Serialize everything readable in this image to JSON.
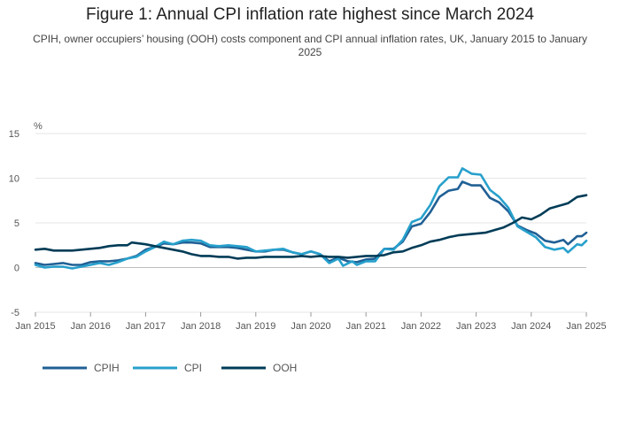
{
  "chart_data": {
    "type": "line",
    "title": "Figure 1: Annual CPI inflation rate highest since March 2024",
    "subtitle": "CPIH, owner occupiers’ housing (OOH) costs component and CPI annual inflation rates, UK, January 2015 to January 2025",
    "ylabel": "%",
    "ylim": [
      -5,
      15
    ],
    "yticks": [
      -5,
      0,
      5,
      10,
      15
    ],
    "xlim": [
      "2015-01",
      "2025-01"
    ],
    "xticks": [
      "Jan 2015",
      "Jan 2016",
      "Jan 2017",
      "Jan 2018",
      "Jan 2019",
      "Jan 2020",
      "Jan 2021",
      "Jan 2022",
      "Jan 2023",
      "Jan 2024",
      "Jan 2025"
    ],
    "grid": true,
    "legend_position": "bottom-left",
    "series": [
      {
        "name": "CPIH",
        "color": "#206095",
        "points": [
          [
            "2015-01",
            0.5
          ],
          [
            "2015-03",
            0.3
          ],
          [
            "2015-05",
            0.4
          ],
          [
            "2015-07",
            0.5
          ],
          [
            "2015-09",
            0.3
          ],
          [
            "2015-11",
            0.3
          ],
          [
            "2016-01",
            0.6
          ],
          [
            "2016-03",
            0.7
          ],
          [
            "2016-05",
            0.7
          ],
          [
            "2016-07",
            0.8
          ],
          [
            "2016-09",
            1.0
          ],
          [
            "2016-11",
            1.3
          ],
          [
            "2017-01",
            2.0
          ],
          [
            "2017-03",
            2.3
          ],
          [
            "2017-05",
            2.7
          ],
          [
            "2017-07",
            2.6
          ],
          [
            "2017-09",
            2.8
          ],
          [
            "2017-11",
            2.8
          ],
          [
            "2018-01",
            2.7
          ],
          [
            "2018-03",
            2.3
          ],
          [
            "2018-05",
            2.3
          ],
          [
            "2018-07",
            2.3
          ],
          [
            "2018-09",
            2.2
          ],
          [
            "2018-11",
            2.0
          ],
          [
            "2019-01",
            1.8
          ],
          [
            "2019-03",
            1.8
          ],
          [
            "2019-05",
            2.0
          ],
          [
            "2019-07",
            2.0
          ],
          [
            "2019-09",
            1.7
          ],
          [
            "2019-11",
            1.5
          ],
          [
            "2020-01",
            1.8
          ],
          [
            "2020-03",
            1.5
          ],
          [
            "2020-05",
            0.7
          ],
          [
            "2020-07",
            1.1
          ],
          [
            "2020-09",
            0.7
          ],
          [
            "2020-11",
            0.6
          ],
          [
            "2021-01",
            0.9
          ],
          [
            "2021-03",
            1.0
          ],
          [
            "2021-05",
            2.1
          ],
          [
            "2021-07",
            2.1
          ],
          [
            "2021-09",
            2.9
          ],
          [
            "2021-11",
            4.6
          ],
          [
            "2022-01",
            4.9
          ],
          [
            "2022-03",
            6.2
          ],
          [
            "2022-05",
            7.9
          ],
          [
            "2022-07",
            8.6
          ],
          [
            "2022-09",
            8.8
          ],
          [
            "2022-10",
            9.6
          ],
          [
            "2022-12",
            9.2
          ],
          [
            "2023-02",
            9.2
          ],
          [
            "2023-04",
            7.8
          ],
          [
            "2023-06",
            7.3
          ],
          [
            "2023-08",
            6.3
          ],
          [
            "2023-10",
            4.7
          ],
          [
            "2023-12",
            4.2
          ],
          [
            "2024-02",
            3.8
          ],
          [
            "2024-04",
            3.0
          ],
          [
            "2024-06",
            2.8
          ],
          [
            "2024-08",
            3.1
          ],
          [
            "2024-09",
            2.6
          ],
          [
            "2024-11",
            3.5
          ],
          [
            "2024-12",
            3.5
          ],
          [
            "2025-01",
            3.9
          ]
        ]
      },
      {
        "name": "CPI",
        "color": "#27a0cc",
        "points": [
          [
            "2015-01",
            0.3
          ],
          [
            "2015-03",
            0.0
          ],
          [
            "2015-05",
            0.1
          ],
          [
            "2015-07",
            0.1
          ],
          [
            "2015-09",
            -0.1
          ],
          [
            "2015-11",
            0.1
          ],
          [
            "2016-01",
            0.3
          ],
          [
            "2016-03",
            0.5
          ],
          [
            "2016-05",
            0.3
          ],
          [
            "2016-07",
            0.6
          ],
          [
            "2016-09",
            1.0
          ],
          [
            "2016-11",
            1.2
          ],
          [
            "2017-01",
            1.8
          ],
          [
            "2017-03",
            2.3
          ],
          [
            "2017-05",
            2.9
          ],
          [
            "2017-07",
            2.6
          ],
          [
            "2017-09",
            3.0
          ],
          [
            "2017-11",
            3.1
          ],
          [
            "2018-01",
            3.0
          ],
          [
            "2018-03",
            2.5
          ],
          [
            "2018-05",
            2.4
          ],
          [
            "2018-07",
            2.5
          ],
          [
            "2018-09",
            2.4
          ],
          [
            "2018-11",
            2.3
          ],
          [
            "2019-01",
            1.8
          ],
          [
            "2019-03",
            1.9
          ],
          [
            "2019-05",
            2.0
          ],
          [
            "2019-07",
            2.1
          ],
          [
            "2019-09",
            1.7
          ],
          [
            "2019-11",
            1.5
          ],
          [
            "2020-01",
            1.8
          ],
          [
            "2020-03",
            1.5
          ],
          [
            "2020-05",
            0.5
          ],
          [
            "2020-07",
            1.0
          ],
          [
            "2020-08",
            0.2
          ],
          [
            "2020-10",
            0.7
          ],
          [
            "2020-11",
            0.3
          ],
          [
            "2021-01",
            0.7
          ],
          [
            "2021-03",
            0.7
          ],
          [
            "2021-05",
            2.1
          ],
          [
            "2021-07",
            2.0
          ],
          [
            "2021-09",
            3.1
          ],
          [
            "2021-11",
            5.1
          ],
          [
            "2022-01",
            5.5
          ],
          [
            "2022-03",
            7.0
          ],
          [
            "2022-05",
            9.1
          ],
          [
            "2022-07",
            10.1
          ],
          [
            "2022-09",
            10.1
          ],
          [
            "2022-10",
            11.1
          ],
          [
            "2022-12",
            10.5
          ],
          [
            "2023-02",
            10.4
          ],
          [
            "2023-04",
            8.7
          ],
          [
            "2023-06",
            7.9
          ],
          [
            "2023-08",
            6.7
          ],
          [
            "2023-10",
            4.6
          ],
          [
            "2023-12",
            4.0
          ],
          [
            "2024-02",
            3.4
          ],
          [
            "2024-04",
            2.3
          ],
          [
            "2024-06",
            2.0
          ],
          [
            "2024-08",
            2.2
          ],
          [
            "2024-09",
            1.7
          ],
          [
            "2024-11",
            2.6
          ],
          [
            "2024-12",
            2.5
          ],
          [
            "2025-01",
            3.0
          ]
        ]
      },
      {
        "name": "OOH",
        "color": "#003c57",
        "points": [
          [
            "2015-01",
            2.0
          ],
          [
            "2015-03",
            2.1
          ],
          [
            "2015-05",
            1.9
          ],
          [
            "2015-07",
            1.9
          ],
          [
            "2015-09",
            1.9
          ],
          [
            "2015-11",
            2.0
          ],
          [
            "2016-01",
            2.1
          ],
          [
            "2016-03",
            2.2
          ],
          [
            "2016-05",
            2.4
          ],
          [
            "2016-07",
            2.5
          ],
          [
            "2016-09",
            2.5
          ],
          [
            "2016-10",
            2.8
          ],
          [
            "2017-01",
            2.6
          ],
          [
            "2017-03",
            2.4
          ],
          [
            "2017-05",
            2.2
          ],
          [
            "2017-07",
            2.0
          ],
          [
            "2017-09",
            1.8
          ],
          [
            "2017-11",
            1.5
          ],
          [
            "2018-01",
            1.3
          ],
          [
            "2018-03",
            1.3
          ],
          [
            "2018-05",
            1.2
          ],
          [
            "2018-07",
            1.2
          ],
          [
            "2018-09",
            1.0
          ],
          [
            "2018-11",
            1.1
          ],
          [
            "2019-01",
            1.1
          ],
          [
            "2019-03",
            1.2
          ],
          [
            "2019-05",
            1.2
          ],
          [
            "2019-07",
            1.2
          ],
          [
            "2019-09",
            1.2
          ],
          [
            "2019-11",
            1.3
          ],
          [
            "2020-01",
            1.2
          ],
          [
            "2020-03",
            1.3
          ],
          [
            "2020-05",
            1.2
          ],
          [
            "2020-07",
            1.2
          ],
          [
            "2020-09",
            1.1
          ],
          [
            "2020-11",
            1.2
          ],
          [
            "2021-01",
            1.3
          ],
          [
            "2021-03",
            1.3
          ],
          [
            "2021-05",
            1.4
          ],
          [
            "2021-07",
            1.7
          ],
          [
            "2021-09",
            1.8
          ],
          [
            "2021-11",
            2.2
          ],
          [
            "2022-01",
            2.5
          ],
          [
            "2022-03",
            2.9
          ],
          [
            "2022-05",
            3.1
          ],
          [
            "2022-07",
            3.4
          ],
          [
            "2022-09",
            3.6
          ],
          [
            "2022-11",
            3.7
          ],
          [
            "2023-01",
            3.8
          ],
          [
            "2023-03",
            3.9
          ],
          [
            "2023-05",
            4.2
          ],
          [
            "2023-07",
            4.5
          ],
          [
            "2023-09",
            5.0
          ],
          [
            "2023-11",
            5.6
          ],
          [
            "2024-01",
            5.4
          ],
          [
            "2024-03",
            5.9
          ],
          [
            "2024-05",
            6.6
          ],
          [
            "2024-07",
            6.9
          ],
          [
            "2024-09",
            7.2
          ],
          [
            "2024-11",
            7.9
          ],
          [
            "2025-01",
            8.1
          ]
        ]
      }
    ]
  }
}
